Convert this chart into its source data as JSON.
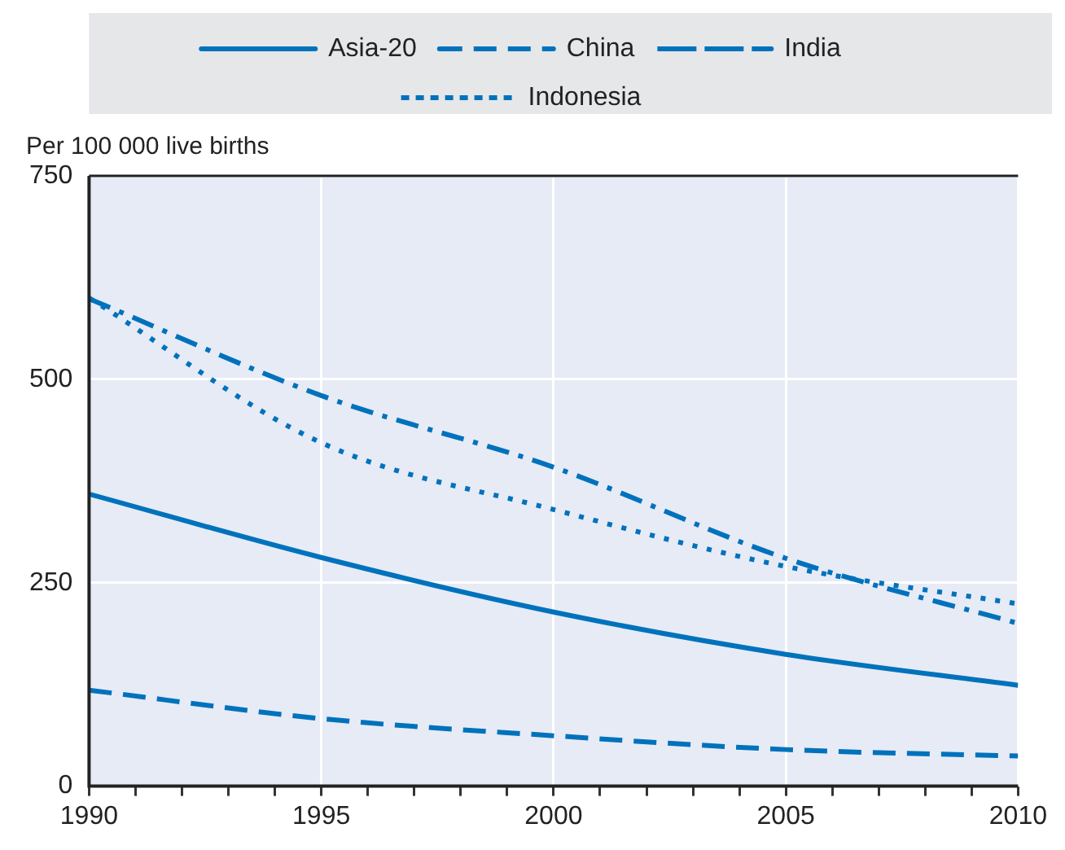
{
  "chart_data": {
    "type": "line",
    "ylabel": "Per 100 000 live births",
    "x": [
      1990,
      1995,
      2000,
      2005,
      2010
    ],
    "series": [
      {
        "name": "Asia-20",
        "color": "#0072bc",
        "line_style": "solid",
        "values": [
          359,
          281,
          214,
          162,
          124
        ]
      },
      {
        "name": "China",
        "color": "#0072bc",
        "line_style": "dashed",
        "values": [
          118,
          83,
          62,
          45,
          37
        ]
      },
      {
        "name": "India",
        "color": "#0072bc",
        "line_style": "dashdot",
        "values": [
          599,
          480,
          392,
          280,
          200
        ]
      },
      {
        "name": "Indonesia",
        "color": "#0072bc",
        "line_style": "dotted",
        "values": [
          600,
          422,
          340,
          270,
          224
        ]
      }
    ],
    "xlim": [
      1990,
      2010
    ],
    "xticks": [
      1990,
      {
        "value": 1991,
        "label": null
      },
      {
        "value": 1992,
        "label": null
      },
      {
        "value": 1993,
        "label": null
      },
      {
        "value": 1994,
        "label": null
      },
      1995,
      {
        "value": 1996,
        "label": null
      },
      {
        "value": 1997,
        "label": null
      },
      {
        "value": 1998,
        "label": null
      },
      {
        "value": 1999,
        "label": null
      },
      2000,
      {
        "value": 2001,
        "label": null
      },
      {
        "value": 2002,
        "label": null
      },
      {
        "value": 2003,
        "label": null
      },
      {
        "value": 2004,
        "label": null
      },
      2005,
      {
        "value": 2006,
        "label": null
      },
      {
        "value": 2007,
        "label": null
      },
      {
        "value": 2008,
        "label": null
      },
      {
        "value": 2009,
        "label": null
      },
      2010
    ],
    "ylim": [
      0,
      750
    ],
    "yticks": [
      0,
      250,
      500,
      750
    ],
    "grid": true,
    "legend": "top",
    "marker": "none"
  }
}
